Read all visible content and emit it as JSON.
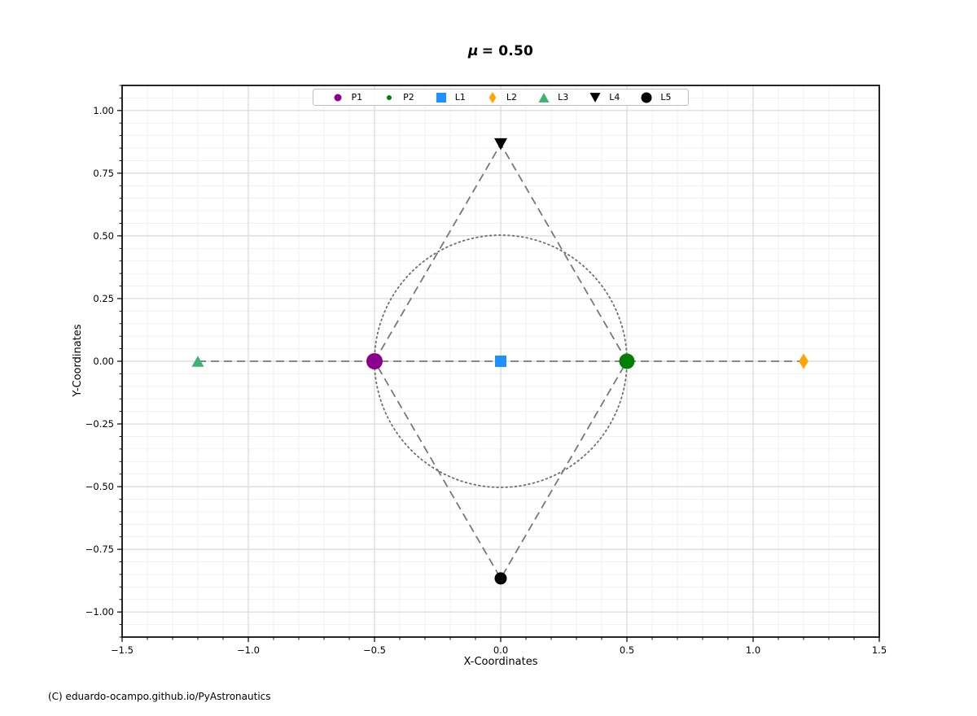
{
  "header": {
    "title_symbol": "μ",
    "title_rest": "= 0.50"
  },
  "footer": {
    "credit": "(C) eduardo-ocampo.github.io/PyAstronautics"
  },
  "chart_data": {
    "type": "scatter",
    "title": "μ = 0.50",
    "xlabel": "X-Coordinates",
    "ylabel": "Y-Coordinates",
    "xlim": [
      -1.5,
      1.5
    ],
    "ylim": [
      -1.1,
      1.1
    ],
    "xticks": [
      -1.5,
      -1.0,
      -0.5,
      0.0,
      0.5,
      1.0,
      1.5
    ],
    "xtick_labels": [
      "−1.5",
      "−1.0",
      "−0.5",
      "0.0",
      "0.5",
      "1.0",
      "1.5"
    ],
    "yticks": [
      -1.0,
      -0.75,
      -0.5,
      -0.25,
      0.0,
      0.25,
      0.5,
      0.75,
      1.0
    ],
    "ytick_labels": [
      "−1.00",
      "−0.75",
      "−0.50",
      "−0.25",
      "0.00",
      "0.25",
      "0.50",
      "0.75",
      "1.00"
    ],
    "x_minor_step": 0.1,
    "y_minor_step": 0.05,
    "grid": "major+minor",
    "grid_major_color": "#d8d8d8",
    "grid_minor_color": "#f0f0f0",
    "spine_color": "#000000",
    "legend": {
      "position": "upper center",
      "entries": [
        "P1",
        "P2",
        "L1",
        "L2",
        "L3",
        "L4",
        "L5"
      ]
    },
    "series": [
      {
        "name": "P1",
        "marker": "circle",
        "color": "#8B008B",
        "points": [
          [
            -0.5,
            0.0
          ]
        ],
        "size": 20,
        "legend_marker_size": 9
      },
      {
        "name": "P2",
        "marker": "circle",
        "color": "#008000",
        "points": [
          [
            0.5,
            0.0
          ]
        ],
        "size": 19,
        "legend_marker_size": 6
      },
      {
        "name": "L1",
        "marker": "square",
        "color": "#1E90FF",
        "points": [
          [
            0.0,
            0.0
          ]
        ],
        "size": 14,
        "legend_marker_size": 12
      },
      {
        "name": "L2",
        "marker": "thin-diamond",
        "color": "#FFA500",
        "points": [
          [
            1.2,
            0.0
          ]
        ],
        "size": 19,
        "legend_marker_size": 14
      },
      {
        "name": "L3",
        "marker": "triangle-up",
        "color": "#3CB371",
        "points": [
          [
            -1.2,
            0.0
          ]
        ],
        "size": 15,
        "legend_marker_size": 13
      },
      {
        "name": "L4",
        "marker": "triangle-down",
        "color": "#000000",
        "points": [
          [
            0.0,
            0.866
          ]
        ],
        "size": 16,
        "legend_marker_size": 13
      },
      {
        "name": "L5",
        "marker": "circle",
        "color": "#000000",
        "points": [
          [
            0.0,
            -0.866
          ]
        ],
        "size": 15,
        "legend_marker_size": 13
      }
    ],
    "lines": [
      {
        "name": "colinear-dashed-line",
        "style": "dashed",
        "color": "#787878",
        "width": 1.8,
        "points": [
          [
            -1.2,
            0.0
          ],
          [
            1.2,
            0.0
          ]
        ]
      },
      {
        "name": "equilateral-dashed-outline",
        "style": "dashed",
        "color": "#787878",
        "width": 1.8,
        "points": [
          [
            -0.5,
            0.0
          ],
          [
            0.0,
            0.866
          ],
          [
            0.5,
            0.0
          ],
          [
            0.0,
            -0.866
          ],
          [
            -0.5,
            0.0
          ]
        ]
      }
    ],
    "circles": [
      {
        "name": "secondary-orbit-circle",
        "center": [
          0.0,
          0.0
        ],
        "radius": 0.5,
        "style": "dotted",
        "color": "#707070",
        "width": 1.8
      }
    ]
  }
}
